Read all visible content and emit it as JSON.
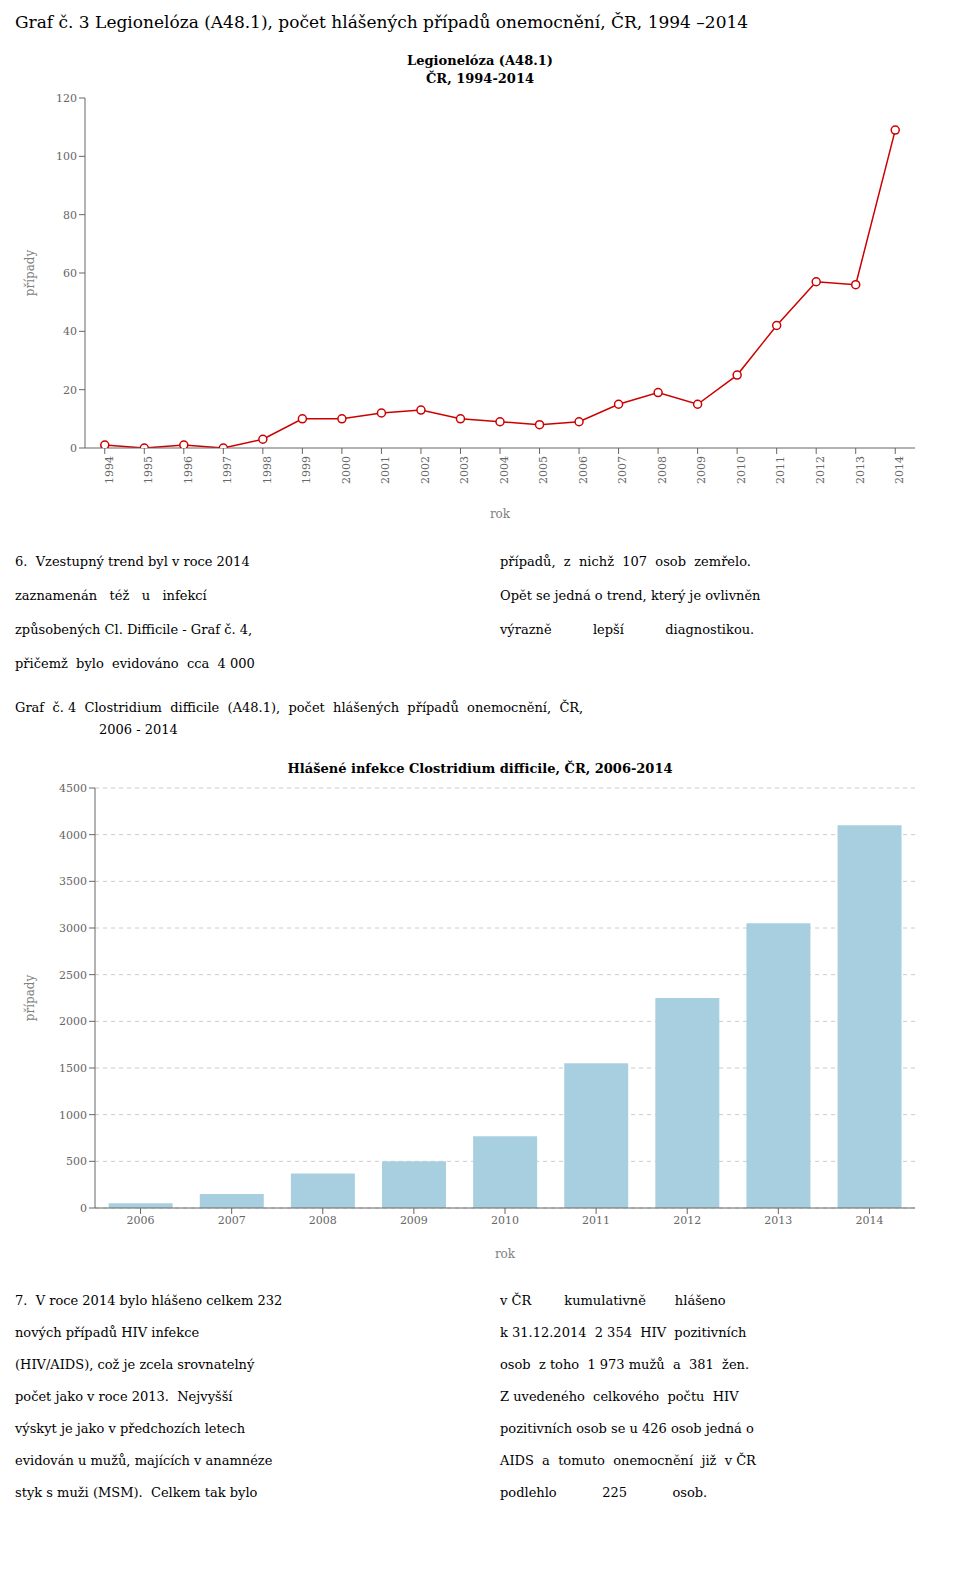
{
  "title": "Graf č. 3 Legionelóza (A48.1), počet hlášených případů onemocnění, ČR, 1994 –2014",
  "chart_data": [
    {
      "type": "line",
      "title": "Legionelóza (A48.1)",
      "subtitle": "ČR, 1994-2014",
      "x": [
        1994,
        1995,
        1996,
        1997,
        1998,
        1999,
        2000,
        2001,
        2002,
        2003,
        2004,
        2005,
        2006,
        2007,
        2008,
        2009,
        2010,
        2011,
        2012,
        2013,
        2014
      ],
      "values": [
        1,
        0,
        1,
        0,
        3,
        10,
        10,
        12,
        13,
        10,
        9,
        8,
        9,
        15,
        19,
        15,
        25,
        42,
        57,
        56,
        109
      ],
      "color": "#cc0000",
      "marker": "circle",
      "xlabel": "rok",
      "ylabel": "případy",
      "xlim": [
        1993.5,
        2014.5
      ],
      "xticks": [
        1994,
        1995,
        1996,
        1997,
        1998,
        1999,
        2000,
        2001,
        2002,
        2003,
        2004,
        2005,
        2006,
        2007,
        2008,
        2009,
        2010,
        2011,
        2012,
        2013,
        2014
      ],
      "ylim": [
        0,
        120
      ],
      "yticks": [
        0,
        20,
        40,
        60,
        80,
        100,
        120
      ],
      "grid": false
    },
    {
      "type": "bar",
      "title": "Hlášené infekce Clostridium difficile, ČR, 2006-2014",
      "categories": [
        "2006",
        "2007",
        "2008",
        "2009",
        "2010",
        "2011",
        "2012",
        "2013",
        "2014"
      ],
      "values": [
        50,
        150,
        370,
        500,
        770,
        1550,
        2250,
        3050,
        4100
      ],
      "color": "#a8cfe0",
      "xlabel": "rok",
      "ylabel": "případy",
      "ylim": [
        0,
        4500
      ],
      "yticks": [
        0,
        500,
        1000,
        1500,
        2000,
        2500,
        3000,
        3500,
        4000,
        4500
      ],
      "grid": true
    }
  ],
  "annotations": [
    "6.  Vzestupný trend byl v roce 2014\nzaznamenán   též   u   infekcí\nzpůsobených Cl. Difficile - Graf č. 4,\npřičemž  bylo  evidováno  cca  4 000",
    "případů,  z  nichž  107  osob  zemřelo.\nOpět se jedná o trend, který je ovlivněn\nvýrazně          lepší          diagnostikou.",
    "Graf  č. 4  Clostridium  difficile  (A48.1),  počet  hlášených  případů  onemocnění,  ČR,",
    "2006 - 2014",
    "7.  V roce 2014 bylo hlášeno celkem 232\nnových případů HIV infekce\n(HIV/AIDS), což je zcela srovnatelný\npočet jako v roce 2013.  Nejvyšší\nvýskyt je jako v předchozích letech\nevidován u mužů, majících v anamnéze\nstyk s muži (MSM).  Celkem tak bylo",
    "v ČR        kumulativně       hlášeno\nk 31.12.2014  2 354  HIV  pozitivních\nosob  z toho  1 973 mužů  a  381  žen.\nZ uvedeného  celkového  počtu  HIV\npozitivních osob se u 426 osob jedná o\nAIDS  a  tomuto  onemocnění  již  v ČR\npodlehlo           225           osob."
  ]
}
